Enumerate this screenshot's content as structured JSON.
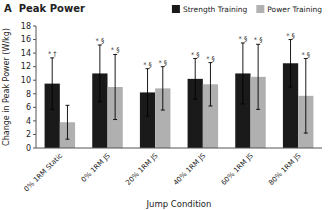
{
  "chart_data": {
    "type": "bar",
    "title": "A  Peak Power",
    "xlabel": "Jump Condition",
    "ylabel": "Change in Peak Power (W/kg)",
    "categories": [
      "0% 1RM Static",
      "0% 1RM JS",
      "20% 1RM JS",
      "40% 1RM JS",
      "60% 1RM JS",
      "80% 1RM JS"
    ],
    "series": [
      {
        "name": "Strength Training",
        "color": "#1a1a1a",
        "values": [
          9.5,
          11.0,
          8.2,
          10.2,
          11.0,
          12.5
        ],
        "errors": [
          3.8,
          4.2,
          3.5,
          3.0,
          4.5,
          3.5
        ],
        "annotations": [
          "* †",
          "* §",
          "* §",
          "* §",
          "* §",
          "* §"
        ]
      },
      {
        "name": "Power Training",
        "color": "#b0b0b0",
        "values": [
          3.8,
          9.0,
          8.8,
          9.4,
          10.5,
          7.7
        ],
        "errors": [
          2.5,
          4.8,
          3.2,
          3.2,
          4.8,
          5.5
        ],
        "annotations": [
          null,
          "* §",
          "* §",
          "* §",
          "* §",
          "* §"
        ]
      }
    ],
    "ylim": [
      0,
      18
    ],
    "yticks": [
      0,
      2,
      4,
      6,
      8,
      10,
      12,
      14,
      16,
      18
    ],
    "legend": "upper right"
  }
}
